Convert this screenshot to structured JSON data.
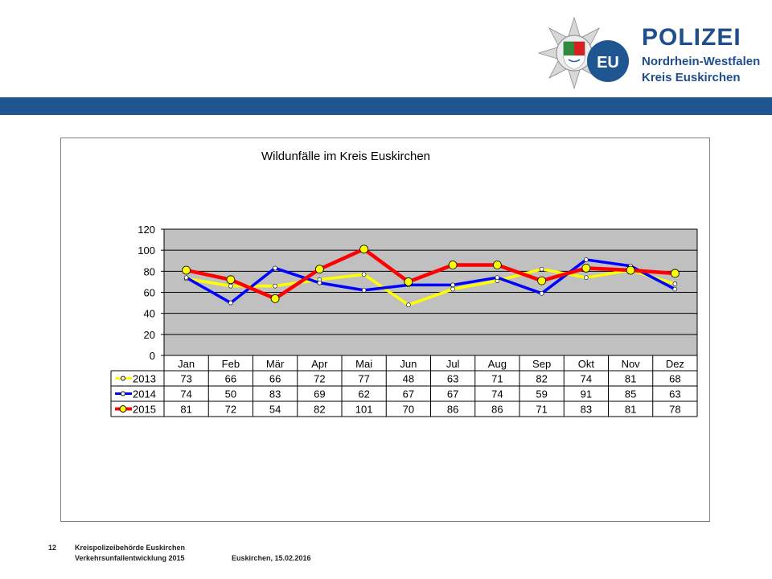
{
  "header": {
    "logo_title": "POLIZEI",
    "logo_subtitle_1": "Nordrhein-Westfalen",
    "logo_subtitle_2": "Kreis Euskirchen",
    "logo_badge": "EU",
    "brand_color": "#1f5591"
  },
  "chart_data": {
    "type": "line",
    "title": "Wildunfälle im Kreis Euskirchen",
    "xlabel": "",
    "ylabel": "",
    "ylim": [
      0,
      120
    ],
    "yticks": [
      "0",
      "20",
      "40",
      "60",
      "80",
      "100",
      "120"
    ],
    "grid": true,
    "plot_background": "#c0c0c0",
    "legend": "data-table",
    "categories": [
      "Jan",
      "Feb",
      "Mär",
      "Apr",
      "Mai",
      "Jun",
      "Jul",
      "Aug",
      "Sep",
      "Okt",
      "Nov",
      "Dez"
    ],
    "series": [
      {
        "name": "2013",
        "color": "#ffff00",
        "marker": "small-circle",
        "values": [
          73,
          66,
          66,
          72,
          77,
          48,
          63,
          71,
          82,
          74,
          81,
          68
        ]
      },
      {
        "name": "2014",
        "color": "#0000ff",
        "marker": "small-circle",
        "values": [
          74,
          50,
          83,
          69,
          62,
          67,
          67,
          74,
          59,
          91,
          85,
          63
        ]
      },
      {
        "name": "2015",
        "color": "#ff0000",
        "marker": "large-circle",
        "values": [
          81,
          72,
          54,
          82,
          101,
          70,
          86,
          86,
          71,
          83,
          81,
          78
        ]
      }
    ]
  },
  "footer": {
    "page_number": "12",
    "line1": "Kreispolizeibehörde Euskirchen",
    "line2": "Verkehrsunfallentwicklung 2015",
    "date": "Euskirchen, 15.02.2016"
  }
}
